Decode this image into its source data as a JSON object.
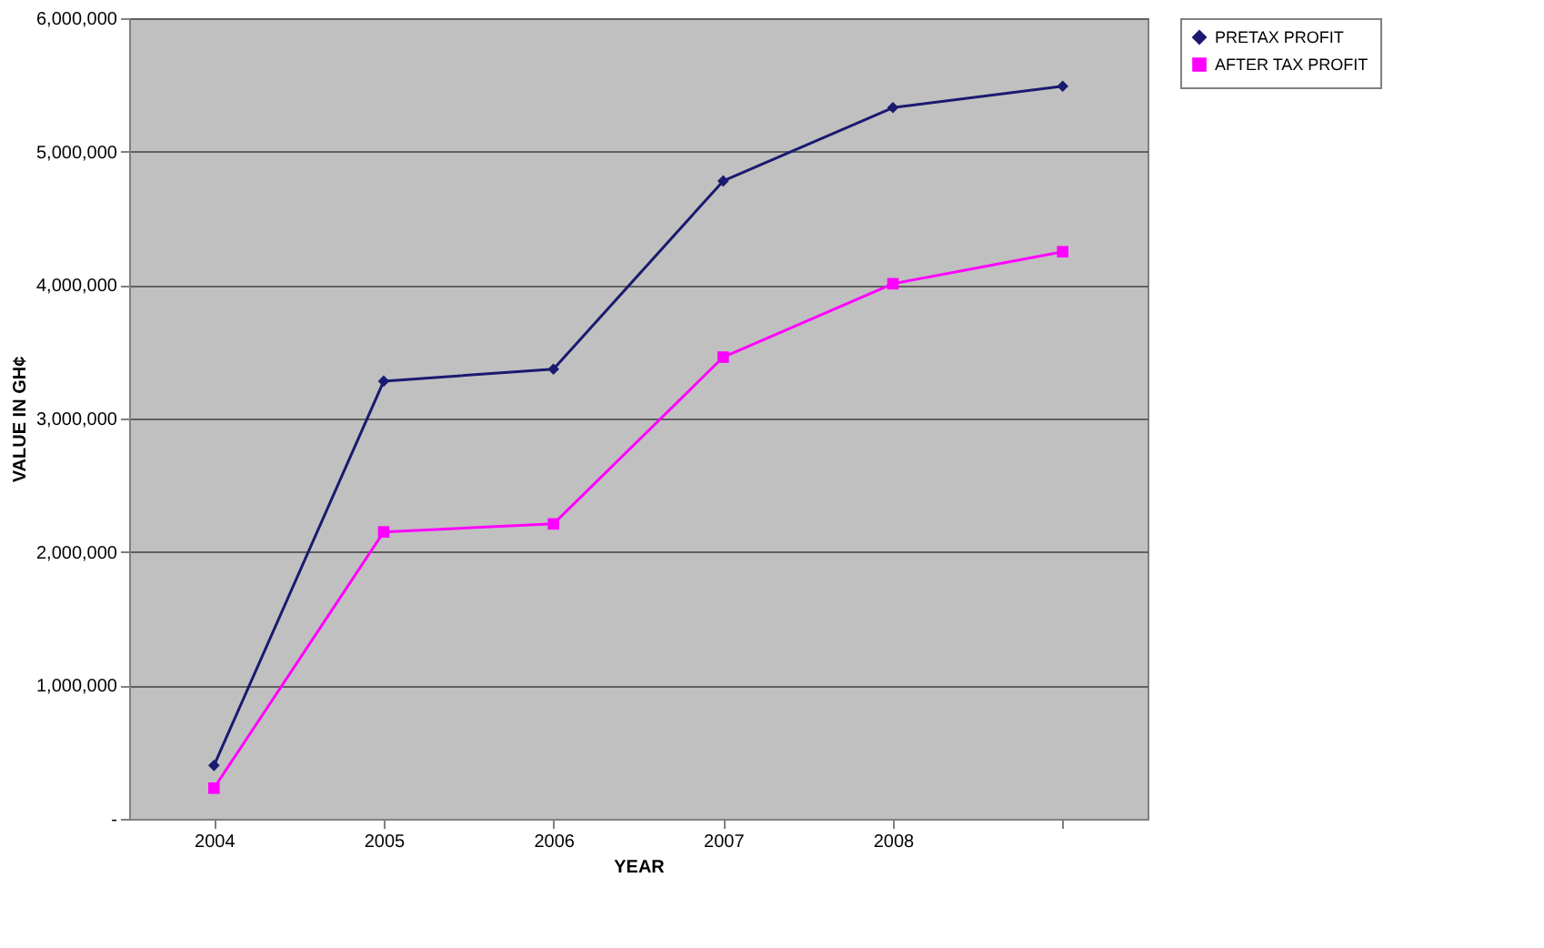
{
  "chart_data": {
    "type": "line",
    "xlabel": "YEAR",
    "ylabel": "VALUE IN GH¢",
    "categories": [
      "2004",
      "2005",
      "2006",
      "2007",
      "2008",
      null
    ],
    "series": [
      {
        "name": "PRETAX PROFIT",
        "color": "#1a1a70",
        "marker": "diamond",
        "values": [
          400000,
          3280000,
          3370000,
          4780000,
          5330000,
          5490000
        ]
      },
      {
        "name": "AFTER TAX PROFIT",
        "color": "#ff00ff",
        "marker": "square",
        "values": [
          230000,
          2150000,
          2210000,
          3460000,
          4010000,
          4250000
        ]
      }
    ],
    "ylim": [
      0,
      6000000
    ],
    "yticks": [
      {
        "value": 0,
        "label": "-"
      },
      {
        "value": 1000000,
        "label": "1,000,000"
      },
      {
        "value": 2000000,
        "label": "2,000,000"
      },
      {
        "value": 3000000,
        "label": "3,000,000"
      },
      {
        "value": 4000000,
        "label": "4,000,000"
      },
      {
        "value": 5000000,
        "label": "5,000,000"
      },
      {
        "value": 6000000,
        "label": "6,000,000"
      }
    ],
    "grid": "y",
    "legend": "right",
    "line_style": "solid"
  }
}
